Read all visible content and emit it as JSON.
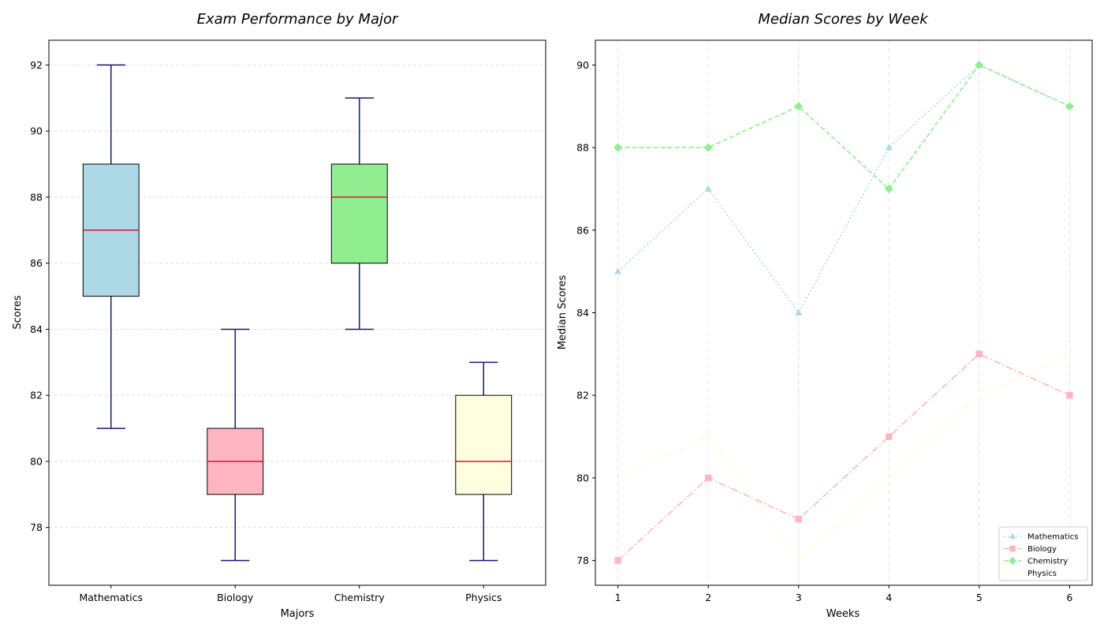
{
  "chart_data": [
    {
      "type": "box",
      "title": "Exam Performance by Major",
      "xlabel": "Majors",
      "ylabel": "Scores",
      "ylim": [
        76.25,
        92.75
      ],
      "yticks": [
        78,
        80,
        82,
        84,
        86,
        88,
        90,
        92
      ],
      "grid": "horizontal",
      "categories": [
        "Mathematics",
        "Biology",
        "Chemistry",
        "Physics"
      ],
      "boxes": [
        {
          "category": "Mathematics",
          "whisker_low": 81,
          "q1": 85,
          "median": 87,
          "q3": 89,
          "whisker_high": 92,
          "color": "#add8e6"
        },
        {
          "category": "Biology",
          "whisker_low": 77,
          "q1": 79,
          "median": 80,
          "q3": 81,
          "whisker_high": 84,
          "color": "#ffb6c1"
        },
        {
          "category": "Chemistry",
          "whisker_low": 84,
          "q1": 86,
          "median": 88,
          "q3": 89,
          "whisker_high": 91,
          "color": "#90ee90"
        },
        {
          "category": "Physics",
          "whisker_low": 77,
          "q1": 79,
          "median": 80,
          "q3": 82,
          "whisker_high": 83,
          "color": "#ffffe0"
        }
      ],
      "median_color": "#dc143c",
      "whisker_color": "#191970"
    },
    {
      "type": "line",
      "title": "Median Scores by Week",
      "xlabel": "Weeks",
      "ylabel": "Median Scores",
      "x": [
        1,
        2,
        3,
        4,
        5,
        6
      ],
      "xlim": [
        0.75,
        6.25
      ],
      "ylim": [
        77.4,
        90.6
      ],
      "yticks": [
        78,
        80,
        82,
        84,
        86,
        88,
        90
      ],
      "grid": "vertical",
      "legend": "lower-right",
      "series": [
        {
          "name": "Mathematics",
          "values": [
            85,
            87,
            84,
            88,
            90,
            89
          ],
          "color": "#add8e6",
          "dash": "dotted",
          "marker": "triangle"
        },
        {
          "name": "Biology",
          "values": [
            78,
            80,
            79,
            81,
            83,
            82
          ],
          "color": "#ffb6c1",
          "dash": "dashdot",
          "marker": "square"
        },
        {
          "name": "Chemistry",
          "values": [
            88,
            88,
            89,
            87,
            90,
            89
          ],
          "color": "#90ee90",
          "dash": "dashed",
          "marker": "diamond"
        },
        {
          "name": "Physics",
          "values": [
            80,
            81,
            78,
            80,
            82,
            83
          ],
          "color": "#ffffe0",
          "dash": "solid",
          "marker": "none"
        }
      ]
    }
  ]
}
